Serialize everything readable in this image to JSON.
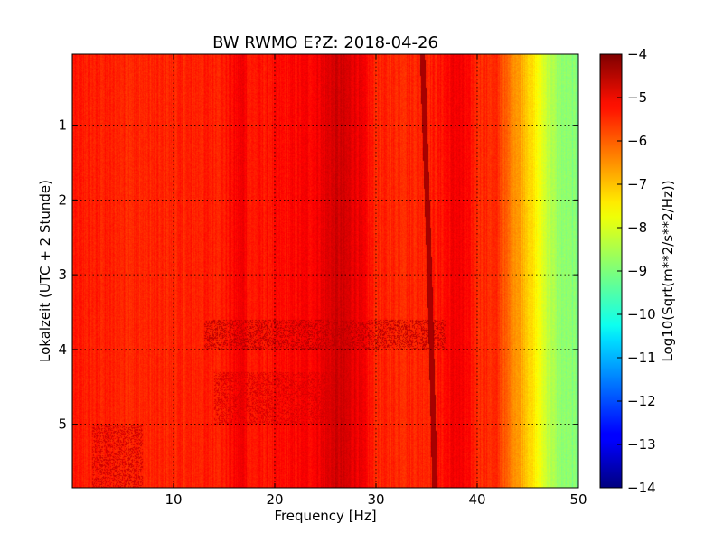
{
  "chart_data": {
    "type": "heatmap",
    "title": "BW RWMO E?Z: 2018-04-26",
    "xlabel": "Frequency [Hz]",
    "ylabel": "Lokalzeit (UTC + 2 Stunde)",
    "xlim": [
      0,
      50
    ],
    "ylim": [
      5.85,
      0.05
    ],
    "y_inverted": true,
    "x_ticks": [
      10,
      20,
      30,
      40,
      50
    ],
    "y_ticks": [
      1,
      2,
      3,
      4,
      5
    ],
    "grid": true,
    "colormap": "jet",
    "colorbar": {
      "label": "Log10(Sqrt(m**2/s**2/Hz))",
      "range": [
        -14,
        -4
      ],
      "ticks": [
        -4,
        -5,
        -6,
        -7,
        -8,
        -9,
        -10,
        -11,
        -12,
        -13,
        -14
      ]
    },
    "frequency_profile": {
      "frequency_hz": [
        0,
        5,
        10,
        15,
        17,
        17.5,
        20,
        24,
        26,
        28,
        30,
        33,
        36,
        38,
        40,
        42,
        43,
        44,
        45,
        46,
        47,
        48,
        50
      ],
      "log10_amplitude": [
        -5.5,
        -5.6,
        -5.6,
        -5.5,
        -5.1,
        -5.5,
        -5.4,
        -5.2,
        -4.8,
        -5.0,
        -5.6,
        -5.6,
        -5.5,
        -5.1,
        -5.6,
        -5.7,
        -6.3,
        -6.7,
        -7.2,
        -7.8,
        -8.3,
        -8.8,
        -9.0
      ]
    },
    "spectral_line": {
      "description": "",
      "time_h": [
        0.05,
        3.0,
        5.15,
        5.85
      ],
      "frequency_hz": [
        34.6,
        35.3,
        35.7,
        35.8
      ],
      "log10_amplitude": -4.2
    },
    "time_features": [
      {
        "time_h": [
          3.6,
          4.0
        ],
        "frequency_hz": [
          13,
          37
        ],
        "log10_amplitude": -4.6
      },
      {
        "time_h": [
          4.3,
          5.0
        ],
        "frequency_hz": [
          14,
          27
        ],
        "log10_amplitude": -4.9
      },
      {
        "time_h": [
          5.0,
          5.85
        ],
        "frequency_hz": [
          2,
          7
        ],
        "log10_amplitude": -4.8
      }
    ]
  }
}
